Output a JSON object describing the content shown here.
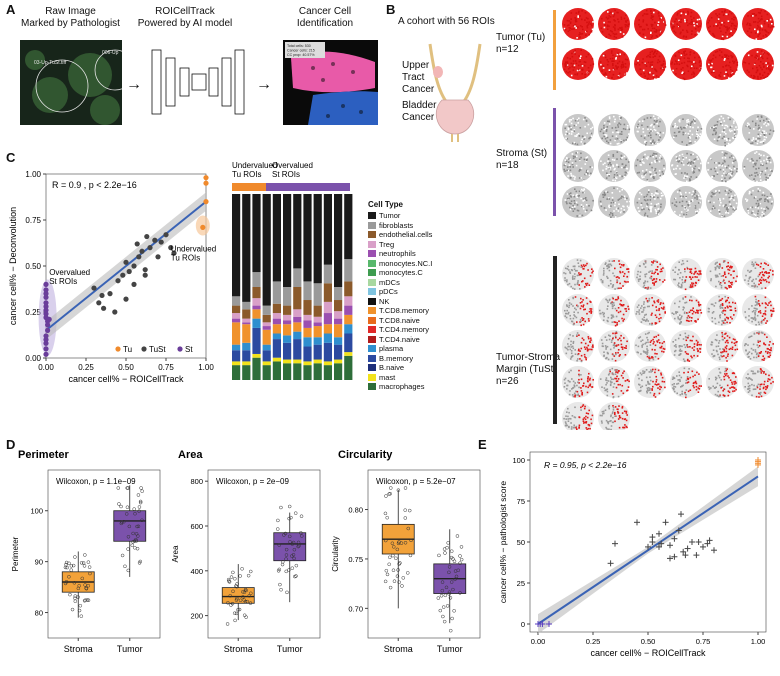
{
  "panelA": {
    "letter": "A",
    "step1": "Raw Image\nMarked by Pathologist",
    "step2": "ROICellTrack\nPowered by AI model",
    "step3": "Cancer Cell\nIdentification",
    "raw_roi_label": "03-Up-TuSt.tiff",
    "raw_roi_label2": "006-Up",
    "box_lines": [
      "Total cells: 530",
      "Cancer cells: 215",
      "CC prop: 40.57%"
    ]
  },
  "panelB": {
    "letter": "B",
    "cohort": "A cohort with 56 ROIs",
    "organ1": "Upper\nTract\nCancer",
    "organ2": "Bladder\nCancer",
    "groups": [
      {
        "label": "Tumor (Tu)",
        "n": "n=12",
        "color": "#f2a03d"
      },
      {
        "label": "Stroma (St)",
        "n": "n=18",
        "color": "#7b52ab"
      },
      {
        "label": "Tumor-Stroma\nMargin (TuSt)",
        "n": "n=26",
        "color": "#222222"
      }
    ]
  },
  "panelC": {
    "letter": "C",
    "annotation": "R = 0.9 , p < 2.2e−16",
    "xlabel": "cancer cell% − ROICellTrack",
    "ylabel": "cancer cell% − Deconvolution",
    "xticks": [
      "0.00",
      "0.25",
      "0.50",
      "0.75",
      "1.00"
    ],
    "yticks": [
      "0.00",
      "0.25",
      "0.50",
      "0.75",
      "1.00"
    ],
    "label_undervalued": "Undervalued\nTu ROIs",
    "label_overvalued": "Overvalued\nSt ROIs",
    "legend": [
      {
        "name": "Tu",
        "color": "#f08a2c"
      },
      {
        "name": "TuSt",
        "color": "#444444"
      },
      {
        "name": "St",
        "color": "#6a3d9a"
      }
    ],
    "bar_header1": "Undervalued\nTu ROIs",
    "bar_header2": "Overvalued\nSt ROIs",
    "celltype_title": "Cell Type",
    "celltypes": [
      {
        "name": "Tumor",
        "color": "#1a1a1a"
      },
      {
        "name": "fibroblasts",
        "color": "#9a9a9a"
      },
      {
        "name": "endothelial.cells",
        "color": "#8b5a2b"
      },
      {
        "name": "Treg",
        "color": "#d9a0c8"
      },
      {
        "name": "neutrophils",
        "color": "#9b4fb0"
      },
      {
        "name": "monocytes.NC.I",
        "color": "#58b86c"
      },
      {
        "name": "monocytes.C",
        "color": "#3e9c50"
      },
      {
        "name": "mDCs",
        "color": "#a8d8a0"
      },
      {
        "name": "pDCs",
        "color": "#7fc4e0"
      },
      {
        "name": "NK",
        "color": "#111111"
      },
      {
        "name": "T.CD8.memory",
        "color": "#f0922c"
      },
      {
        "name": "T.CD8.naive",
        "color": "#e86a1c"
      },
      {
        "name": "T.CD4.memory",
        "color": "#e02828"
      },
      {
        "name": "T.CD4.naive",
        "color": "#b01c1c"
      },
      {
        "name": "plasma",
        "color": "#2f8fcf"
      },
      {
        "name": "B.memory",
        "color": "#2c4aa0"
      },
      {
        "name": "B.naive",
        "color": "#1e2f7a"
      },
      {
        "name": "mast",
        "color": "#f2e21c"
      },
      {
        "name": "macrophages",
        "color": "#2e6e3a"
      }
    ]
  },
  "panelD": {
    "letter": "D",
    "plots": [
      {
        "title": "Perimeter",
        "stat": "Wilcoxon, p = 1.1e−09",
        "ylabel": "Perimeter",
        "yticks": [
          "80",
          "90",
          "100"
        ]
      },
      {
        "title": "Area",
        "stat": "Wilcoxon, p = 2e−09",
        "ylabel": "Area",
        "yticks": [
          "200",
          "400",
          "600",
          "800"
        ]
      },
      {
        "title": "Circularity",
        "stat": "Wilcoxon, p = 5.2e−07",
        "ylabel": "Circularity",
        "yticks": [
          "0.70",
          "0.75",
          "0.80"
        ]
      }
    ],
    "groups": [
      "Stroma",
      "Tumor"
    ]
  },
  "panelE": {
    "letter": "E",
    "annotation": "R = 0.95, p < 2.2e−16",
    "xlabel": "cancer cell% − ROICellTrack",
    "ylabel": "cancer cell% − pathologist score",
    "xticks": [
      "0.00",
      "0.25",
      "0.50",
      "0.75",
      "1.00"
    ],
    "yticks": [
      "0",
      "25",
      "50",
      "75",
      "100"
    ]
  },
  "chart_data": [
    {
      "type": "scatter",
      "title": "C",
      "xlabel": "cancer cell% − ROICellTrack",
      "ylabel": "cancer cell% − Deconvolution",
      "xlim": [
        0,
        1
      ],
      "ylim": [
        0,
        1
      ],
      "series": [
        {
          "name": "Tu",
          "x": [
            1.0,
            1.0,
            1.0,
            0.98
          ],
          "y": [
            0.98,
            0.95,
            0.85,
            0.71
          ]
        },
        {
          "name": "TuSt",
          "x": [
            0.3,
            0.33,
            0.36,
            0.4,
            0.43,
            0.45,
            0.48,
            0.5,
            0.52,
            0.55,
            0.57,
            0.58,
            0.6,
            0.62,
            0.63,
            0.65,
            0.68,
            0.7,
            0.72,
            0.75,
            0.78,
            0.8,
            0.5,
            0.55,
            0.35,
            0.62
          ],
          "y": [
            0.38,
            0.3,
            0.27,
            0.35,
            0.25,
            0.42,
            0.45,
            0.32,
            0.47,
            0.5,
            0.62,
            0.55,
            0.58,
            0.48,
            0.66,
            0.6,
            0.64,
            0.55,
            0.63,
            0.67,
            0.6,
            0.57,
            0.52,
            0.4,
            0.34,
            0.45
          ]
        },
        {
          "name": "St",
          "x": [
            0,
            0,
            0,
            0,
            0,
            0,
            0,
            0,
            0,
            0.01,
            0.01,
            0.01,
            0,
            0,
            0,
            0,
            0.02,
            0
          ],
          "y": [
            0.4,
            0.37,
            0.35,
            0.33,
            0.3,
            0.28,
            0.26,
            0.24,
            0.22,
            0.2,
            0.18,
            0.15,
            0.12,
            0.1,
            0.08,
            0.05,
            0.21,
            0.02
          ]
        }
      ],
      "regression": {
        "x": [
          0,
          1
        ],
        "y": [
          0.15,
          0.85
        ]
      }
    },
    {
      "type": "bar",
      "title": "C stacked composition",
      "stacked": true,
      "bars": 12,
      "segments": [
        [
          "Tumor",
          [
            0.55,
            0.58,
            0.42,
            0.6,
            0.47,
            0.5,
            0.4,
            0.47,
            0.48,
            0.38,
            0.5,
            0.35
          ]
        ],
        [
          "fibroblasts",
          [
            0.05,
            0.04,
            0.08,
            0.05,
            0.12,
            0.1,
            0.1,
            0.1,
            0.12,
            0.1,
            0.07,
            0.12
          ]
        ],
        [
          "endothelial.cells",
          [
            0.04,
            0.05,
            0.06,
            0.04,
            0.05,
            0.05,
            0.12,
            0.08,
            0.06,
            0.1,
            0.06,
            0.08
          ]
        ],
        [
          "Treg",
          [
            0.03,
            0.02,
            0.04,
            0.02,
            0.03,
            0.03,
            0.04,
            0.03,
            0.03,
            0.06,
            0.04,
            0.05
          ]
        ],
        [
          "neutrophils",
          [
            0.02,
            0.01,
            0.02,
            0.02,
            0.03,
            0.02,
            0.03,
            0.04,
            0.02,
            0.06,
            0.03,
            0.05
          ]
        ],
        [
          "T.CD8.memory",
          [
            0.12,
            0.1,
            0.05,
            0.08,
            0.05,
            0.06,
            0.05,
            0.05,
            0.06,
            0.05,
            0.07,
            0.05
          ]
        ],
        [
          "plasma",
          [
            0.03,
            0.04,
            0.05,
            0.03,
            0.03,
            0.04,
            0.04,
            0.05,
            0.04,
            0.05,
            0.04,
            0.05
          ]
        ],
        [
          "B.memory",
          [
            0.06,
            0.06,
            0.14,
            0.06,
            0.1,
            0.09,
            0.11,
            0.08,
            0.08,
            0.1,
            0.08,
            0.1
          ]
        ],
        [
          "mast",
          [
            0.02,
            0.02,
            0.02,
            0.02,
            0.02,
            0.02,
            0.02,
            0.02,
            0.02,
            0.02,
            0.02,
            0.02
          ]
        ],
        [
          "macrophages",
          [
            0.08,
            0.08,
            0.12,
            0.08,
            0.1,
            0.09,
            0.09,
            0.08,
            0.09,
            0.08,
            0.09,
            0.13
          ]
        ]
      ]
    },
    {
      "type": "scatter",
      "title": "E",
      "xlabel": "cancer cell% − ROICellTrack",
      "ylabel": "cancer cell% − pathologist score",
      "xlim": [
        0,
        1
      ],
      "ylim": [
        0,
        100
      ],
      "series": [
        {
          "name": "Tu",
          "x": [
            1,
            1,
            1,
            1
          ],
          "y": [
            100,
            99,
            98,
            97
          ]
        },
        {
          "name": "TuSt",
          "x": [
            0.33,
            0.35,
            0.45,
            0.5,
            0.52,
            0.55,
            0.58,
            0.6,
            0.6,
            0.62,
            0.65,
            0.66,
            0.68,
            0.7,
            0.72,
            0.75,
            0.78,
            0.8,
            0.52,
            0.56,
            0.64,
            0.67,
            0.73,
            0.77,
            0.62,
            0.55
          ],
          "y": [
            37,
            49,
            62,
            47,
            50,
            55,
            62,
            48,
            40,
            52,
            67,
            44,
            46,
            50,
            42,
            47,
            51,
            45,
            53,
            49,
            57,
            42,
            50,
            49,
            41,
            47
          ]
        },
        {
          "name": "St",
          "x": [
            0,
            0,
            0.01,
            0.02,
            0.05
          ],
          "y": [
            0,
            0,
            0,
            0,
            0
          ]
        }
      ],
      "regression": {
        "x": [
          0,
          1
        ],
        "y": [
          0,
          90
        ]
      }
    },
    {
      "type": "box",
      "title": "Perimeter",
      "categories": [
        "Stroma",
        "Tumor"
      ],
      "ylim": [
        75,
        108
      ],
      "medians": [
        86,
        98
      ],
      "q1": [
        84,
        94
      ],
      "q3": [
        88,
        100
      ],
      "min": [
        79,
        87
      ],
      "max": [
        92,
        105
      ]
    },
    {
      "type": "box",
      "title": "Area",
      "categories": [
        "Stroma",
        "Tumor"
      ],
      "ylim": [
        100,
        850
      ],
      "medians": [
        285,
        520
      ],
      "q1": [
        255,
        445
      ],
      "q3": [
        325,
        570
      ],
      "min": [
        180,
        260
      ],
      "max": [
        430,
        660
      ]
    },
    {
      "type": "box",
      "title": "Circularity",
      "categories": [
        "Stroma",
        "Tumor"
      ],
      "ylim": [
        0.67,
        0.84
      ],
      "medians": [
        0.77,
        0.73
      ],
      "q1": [
        0.755,
        0.715
      ],
      "q3": [
        0.785,
        0.745
      ],
      "min": [
        0.7,
        0.685
      ],
      "max": [
        0.82,
        0.78
      ]
    }
  ]
}
